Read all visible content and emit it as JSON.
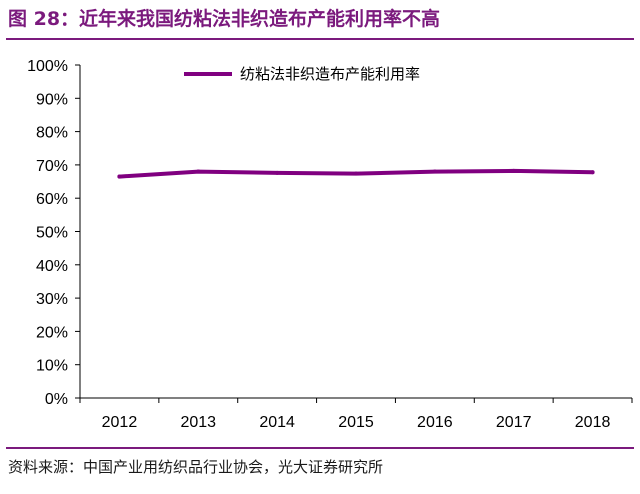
{
  "title": "图 28：近年来我国纺粘法非织造布产能利用率不高",
  "source": "资料来源：中国产业用纺织品行业协会，光大证券研究所",
  "colors": {
    "accent": "#7b1a7d",
    "series": "#800080"
  },
  "chart_data": {
    "type": "line",
    "title": "",
    "xlabel": "",
    "ylabel": "",
    "x": [
      "2012",
      "2013",
      "2014",
      "2015",
      "2016",
      "2017",
      "2018"
    ],
    "yticks": [
      "0%",
      "10%",
      "20%",
      "30%",
      "40%",
      "50%",
      "60%",
      "70%",
      "80%",
      "90%",
      "100%"
    ],
    "ylim": [
      0,
      1
    ],
    "grid": false,
    "legend_position": "top",
    "series": [
      {
        "name": "纺粘法非织造布产能利用率",
        "values": [
          0.665,
          0.68,
          0.676,
          0.674,
          0.68,
          0.682,
          0.678
        ]
      }
    ]
  }
}
